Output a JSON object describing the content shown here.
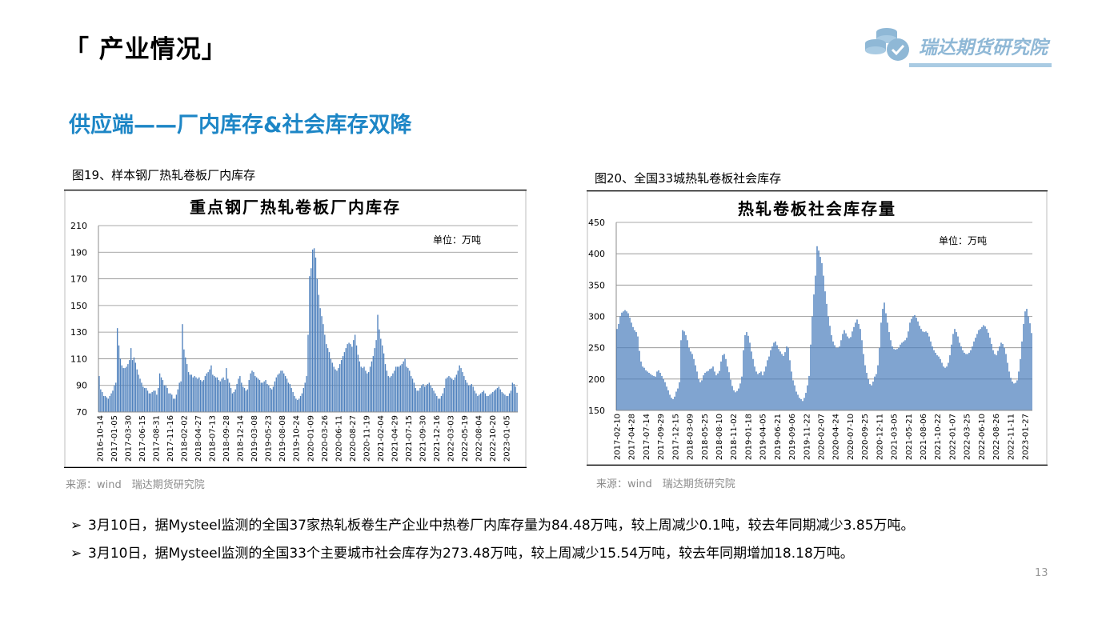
{
  "page": {
    "title": "「 产业情况」",
    "section_title": "供应端——厂内库存&社会库存双降",
    "logo_text": "瑞达期货研究院",
    "page_number": "13"
  },
  "figures": [
    {
      "caption": "图19、样本钢厂热轧卷板厂内库存",
      "source": "来源：wind　瑞达期货研究院"
    },
    {
      "caption": "图20、全国33城热轧卷板社会库存",
      "source": "来源：wind　瑞达期货研究院"
    }
  ],
  "bullets": [
    {
      "arrow": "➢",
      "text": "3月10日，据Mysteel监测的全国37家热轧板卷生产企业中热卷厂内库存量为84.48万吨，较上周减少0.1吨，较去年同期减少3.85万吨。"
    },
    {
      "arrow": "➢",
      "text": "3月10日，据Mysteel监测的全国33个主要城市社会库存为273.48万吨，较上周减少15.54万吨，较去年同期增加18.18万吨。"
    }
  ],
  "chart_data": [
    {
      "type": "bar",
      "title": "重点钢厂热轧卷板厂内库存",
      "unit_label": "单位：万吨",
      "bar_color": "#4f81bd",
      "ylim": [
        70,
        210
      ],
      "yticks": [
        70,
        90,
        110,
        130,
        150,
        170,
        190,
        210
      ],
      "grid": true,
      "x_tick_labels": [
        "2016-10-14",
        "2017-01-05",
        "2017-03-30",
        "2017-06-15",
        "2017-08-31",
        "2017-11-16",
        "2018-02-02",
        "2018-04-27",
        "2018-07-13",
        "2018-09-28",
        "2018-12-14",
        "2019-03-08",
        "2019-05-23",
        "2019-08-08",
        "2019-10-24",
        "2020-01-09",
        "2020-03-26",
        "2020-06-11",
        "2020-08-27",
        "2020-11-19",
        "2021-02-04",
        "2021-04-29",
        "2021-07-15",
        "2021-09-30",
        "2021-12-16",
        "2022-03-03",
        "2022-05-19",
        "2022-08-04",
        "2022-10-20",
        "2023-01-05"
      ],
      "values": [
        97,
        87,
        85,
        82,
        82,
        81,
        80,
        82,
        84,
        86,
        90,
        92,
        133,
        120,
        110,
        105,
        103,
        103,
        104,
        106,
        109,
        118,
        109,
        111,
        107,
        102,
        98,
        95,
        92,
        89,
        88,
        88,
        86,
        84,
        84,
        85,
        86,
        86,
        83,
        88,
        99,
        96,
        94,
        90,
        90,
        88,
        84,
        84,
        83,
        80,
        80,
        83,
        87,
        92,
        93,
        136,
        117,
        111,
        106,
        100,
        98,
        98,
        96,
        97,
        96,
        95,
        96,
        94,
        93,
        94,
        97,
        99,
        100,
        102,
        105,
        98,
        97,
        96,
        96,
        94,
        93,
        95,
        96,
        94,
        103,
        95,
        92,
        88,
        84,
        85,
        87,
        91,
        95,
        97,
        92,
        89,
        88,
        86,
        87,
        94,
        99,
        101,
        100,
        97,
        96,
        95,
        94,
        92,
        92,
        93,
        94,
        91,
        90,
        88,
        87,
        89,
        93,
        96,
        98,
        99,
        101,
        101,
        99,
        97,
        95,
        92,
        91,
        88,
        85,
        82,
        80,
        79,
        80,
        82,
        84,
        88,
        92,
        97,
        128,
        172,
        178,
        192,
        193,
        186,
        170,
        158,
        148,
        142,
        136,
        128,
        121,
        118,
        115,
        110,
        107,
        104,
        102,
        101,
        103,
        106,
        109,
        112,
        115,
        118,
        121,
        122,
        121,
        119,
        124,
        128,
        120,
        113,
        108,
        104,
        103,
        104,
        101,
        99,
        100,
        104,
        108,
        112,
        118,
        124,
        143,
        132,
        125,
        120,
        114,
        106,
        101,
        97,
        96,
        97,
        99,
        101,
        104,
        104,
        104,
        105,
        106,
        108,
        110,
        104,
        103,
        101,
        97,
        95,
        92,
        88,
        86,
        86,
        88,
        90,
        91,
        89,
        90,
        91,
        92,
        90,
        88,
        86,
        84,
        82,
        80,
        80,
        82,
        84,
        88,
        95,
        96,
        97,
        96,
        95,
        94,
        96,
        98,
        101,
        105,
        103,
        100,
        97,
        94,
        92,
        90,
        90,
        91,
        89,
        86,
        84,
        82,
        83,
        84,
        85,
        86,
        84,
        82,
        82,
        83,
        84,
        85,
        86,
        87,
        88,
        89,
        87,
        85,
        84,
        83,
        82,
        82,
        84,
        86,
        92,
        91,
        89,
        84.48
      ]
    },
    {
      "type": "bar",
      "title": "热轧卷板社会库存量",
      "unit_label": "单位：万吨",
      "bar_color": "#4f81bd",
      "ylim": [
        150,
        450
      ],
      "yticks": [
        150,
        200,
        250,
        300,
        350,
        400,
        450
      ],
      "grid": true,
      "x_tick_labels": [
        "2017-02-10",
        "2017-04-28",
        "2017-07-14",
        "2017-09-29",
        "2017-12-15",
        "2018-03-09",
        "2018-05-25",
        "2018-08-10",
        "2018-11-02",
        "2019-01-18",
        "2019-04-05",
        "2019-06-21",
        "2019-09-06",
        "2019-11-22",
        "2020-02-07",
        "2020-04-24",
        "2020-07-10",
        "2020-09-25",
        "2020-12-11",
        "2021-03-05",
        "2021-05-21",
        "2021-08-06",
        "2021-10-22",
        "2022-01-07",
        "2022-03-25",
        "2022-06-10",
        "2022-08-26",
        "2022-11-11",
        "2023-01-27"
      ],
      "values": [
        280,
        288,
        300,
        306,
        308,
        310,
        308,
        305,
        298,
        290,
        283,
        278,
        275,
        268,
        245,
        228,
        220,
        218,
        214,
        212,
        210,
        208,
        206,
        205,
        204,
        212,
        214,
        210,
        205,
        200,
        195,
        188,
        182,
        175,
        170,
        168,
        172,
        180,
        185,
        195,
        262,
        278,
        276,
        270,
        262,
        250,
        244,
        240,
        232,
        222,
        212,
        200,
        195,
        198,
        206,
        210,
        212,
        213,
        216,
        217,
        220,
        212,
        206,
        209,
        213,
        228,
        238,
        240,
        232,
        220,
        211,
        199,
        189,
        182,
        179,
        181,
        185,
        193,
        204,
        246,
        270,
        275,
        269,
        258,
        244,
        232,
        220,
        212,
        208,
        210,
        212,
        206,
        212,
        220,
        230,
        236,
        246,
        252,
        258,
        260,
        254,
        248,
        244,
        240,
        237,
        243,
        252,
        250,
        230,
        212,
        198,
        190,
        180,
        175,
        170,
        168,
        165,
        170,
        178,
        190,
        205,
        255,
        300,
        335,
        365,
        412,
        405,
        395,
        385,
        365,
        340,
        320,
        300,
        285,
        270,
        260,
        254,
        250,
        250,
        252,
        262,
        272,
        278,
        273,
        268,
        265,
        267,
        276,
        283,
        290,
        295,
        288,
        280,
        262,
        240,
        222,
        210,
        200,
        192,
        190,
        196,
        204,
        208,
        222,
        250,
        290,
        312,
        322,
        305,
        290,
        275,
        262,
        252,
        248,
        247,
        248,
        250,
        255,
        258,
        260,
        262,
        266,
        276,
        290,
        296,
        300,
        302,
        298,
        292,
        285,
        280,
        276,
        275,
        276,
        274,
        268,
        260,
        252,
        246,
        242,
        238,
        236,
        232,
        226,
        220,
        218,
        220,
        226,
        238,
        255,
        272,
        280,
        275,
        268,
        258,
        252,
        246,
        242,
        240,
        240,
        242,
        246,
        252,
        260,
        266,
        272,
        278,
        280,
        283,
        286,
        284,
        280,
        274,
        266,
        256,
        246,
        240,
        238,
        245,
        252,
        258,
        256,
        250,
        240,
        226,
        212,
        202,
        196,
        193,
        194,
        198,
        212,
        232,
        260,
        288,
        308,
        312,
        300,
        289,
        273.48
      ]
    }
  ]
}
